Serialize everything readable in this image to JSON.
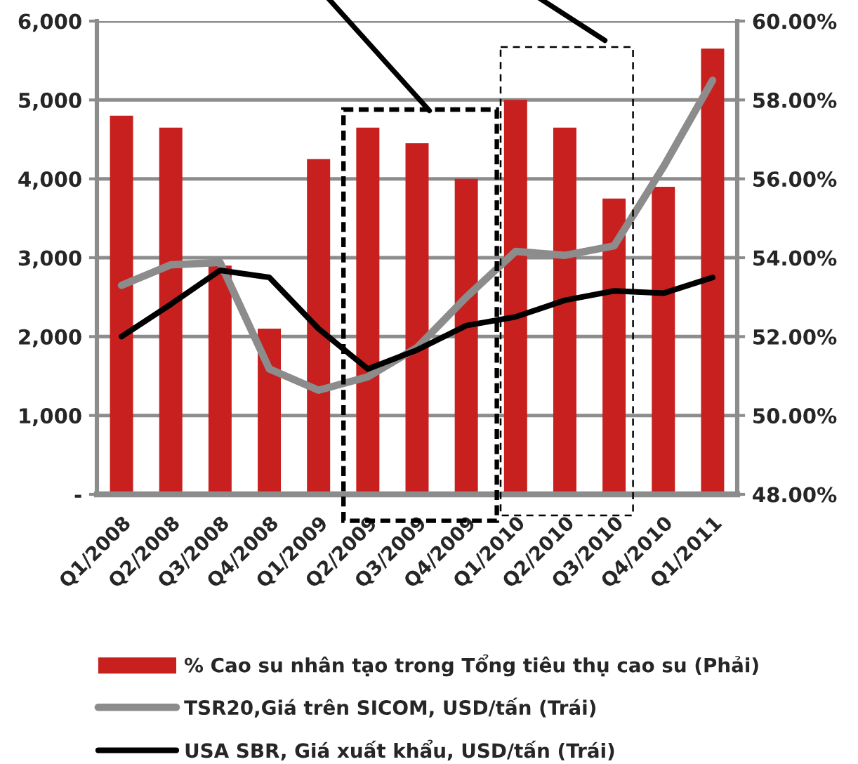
{
  "chart_data": {
    "type": "bar",
    "categories": [
      "Q1/2008",
      "Q2/2008",
      "Q3/2008",
      "Q4/2008",
      "Q1/2009",
      "Q2/2009",
      "Q3/2009",
      "Q4/2009",
      "Q1/2010",
      "Q2/2010",
      "Q3/2010",
      "Q4/2010",
      "Q1/2011"
    ],
    "series": [
      {
        "name": "% Cao su nhân tạo trong Tổng tiêu thụ cao su (Phải)",
        "axis": "y2",
        "color": "#c8201e",
        "values": [
          57.6,
          57.3,
          53.8,
          52.2,
          56.5,
          57.3,
          56.9,
          56.0,
          58.0,
          57.3,
          55.5,
          55.8,
          59.3
        ]
      },
      {
        "name": "TSR20,Giá trên SICOM, USD/tấn (Trái)",
        "type": "line",
        "color": "#8c8c8c",
        "values": [
          2650,
          2910,
          2940,
          1590,
          1320,
          1490,
          1860,
          2500,
          3080,
          3030,
          3150,
          4150,
          5250
        ]
      },
      {
        "name": "USA SBR, Giá xuất khẩu, USD/tấn (Trái)",
        "type": "line",
        "color": "#000000",
        "values": [
          2000,
          2410,
          2840,
          2750,
          2100,
          1590,
          1830,
          2140,
          2250,
          2460,
          2580,
          2550,
          2750
        ]
      }
    ],
    "ylim": [
      0,
      6000
    ],
    "yticks": [
      {
        "value": 0,
        "label": "-"
      },
      {
        "value": 1000,
        "label": "1,000"
      },
      {
        "value": 2000,
        "label": "2,000"
      },
      {
        "value": 3000,
        "label": "3,000"
      },
      {
        "value": 4000,
        "label": "4,000"
      },
      {
        "value": 5000,
        "label": "5,000"
      },
      {
        "value": 6000,
        "label": "6,000"
      }
    ],
    "y2lim": [
      48,
      60
    ],
    "y2ticks": [
      {
        "value": 48,
        "label": "48.00%"
      },
      {
        "value": 50,
        "label": "50.00%"
      },
      {
        "value": 52,
        "label": "52.00%"
      },
      {
        "value": 54,
        "label": "54.00%"
      },
      {
        "value": 56,
        "label": "56.00%"
      },
      {
        "value": 58,
        "label": "58.00%"
      },
      {
        "value": 60,
        "label": "60.00%"
      }
    ],
    "grid": "y",
    "legend": "bottom"
  }
}
